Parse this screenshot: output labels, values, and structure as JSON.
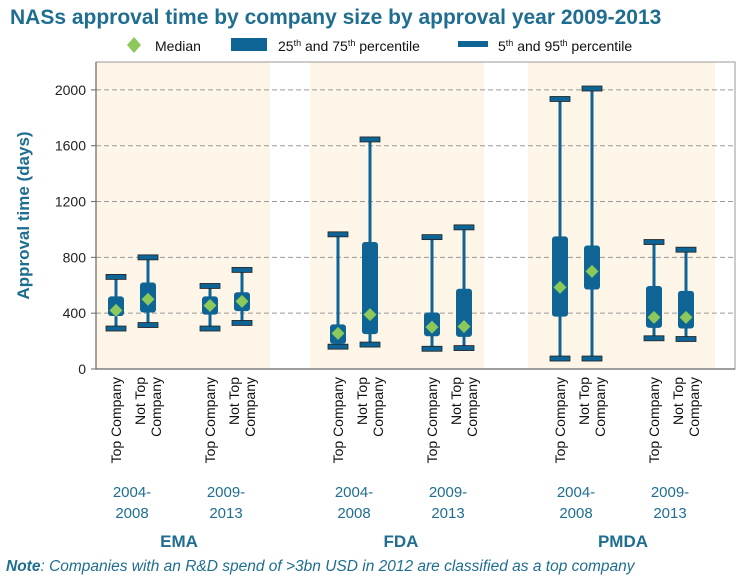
{
  "title": "NASs approval time by company size by approval year 2009-2013",
  "note": {
    "label": "Note",
    "text": ": Companies with an R&D spend of >3bn USD in 2012 are classified as a top company"
  },
  "colors": {
    "box": "#0e6494",
    "median": "#8dc85d",
    "band": "#fdf6e8",
    "axis_text": "#1f6e91",
    "grid": "#9a9a9a"
  },
  "chart_data": {
    "type": "boxplot",
    "title": "NASs approval time by company size by approval year 2009-2013",
    "ylabel": "Approval time (days)",
    "ylim": [
      0,
      2200
    ],
    "yticks": [
      0,
      400,
      800,
      1200,
      1600,
      2000
    ],
    "grid": true,
    "legend": {
      "position": "top",
      "entries": [
        {
          "symbol": "diamond",
          "label": "Median"
        },
        {
          "symbol": "box",
          "label_main": "25",
          "sup1": "th",
          "label_mid": " and 75",
          "sup2": "th",
          "label_end": " percentile"
        },
        {
          "symbol": "whisker",
          "label_main": "5",
          "sup1": "th",
          "label_mid": " and 95",
          "sup2": "th",
          "label_end": " percentile"
        }
      ]
    },
    "agencies": [
      {
        "name": "EMA",
        "periods": [
          {
            "label": [
              "2004-",
              "2008"
            ],
            "boxes": [
              {
                "category": [
                  "Top Company"
                ],
                "p5": 290,
                "q1": 380,
                "median": 420,
                "q3": 520,
                "p95": 660
              },
              {
                "category": [
                  "Not Top",
                  "Company"
                ],
                "p5": 315,
                "q1": 405,
                "median": 500,
                "q3": 620,
                "p95": 800
              }
            ]
          },
          {
            "label": [
              "2009-",
              "2013"
            ],
            "boxes": [
              {
                "category": [
                  "Top Company"
                ],
                "p5": 290,
                "q1": 390,
                "median": 455,
                "q3": 520,
                "p95": 595
              },
              {
                "category": [
                  "Not Top",
                  "Company"
                ],
                "p5": 330,
                "q1": 415,
                "median": 485,
                "q3": 550,
                "p95": 710
              }
            ]
          }
        ]
      },
      {
        "name": "FDA",
        "periods": [
          {
            "label": [
              "2004-",
              "2008"
            ],
            "boxes": [
              {
                "category": [
                  "Top Company"
                ],
                "p5": 160,
                "q1": 180,
                "median": 255,
                "q3": 320,
                "p95": 965
              },
              {
                "category": [
                  "Not Top",
                  "Company"
                ],
                "p5": 175,
                "q1": 250,
                "median": 390,
                "q3": 910,
                "p95": 1645
              }
            ]
          },
          {
            "label": [
              "2009-",
              "2013"
            ],
            "boxes": [
              {
                "category": [
                  "Top Company"
                ],
                "p5": 145,
                "q1": 235,
                "median": 300,
                "q3": 405,
                "p95": 945
              },
              {
                "category": [
                  "Not Top",
                  "Company"
                ],
                "p5": 150,
                "q1": 230,
                "median": 305,
                "q3": 575,
                "p95": 1015
              }
            ]
          }
        ]
      },
      {
        "name": "PMDA",
        "periods": [
          {
            "label": [
              "2004-",
              "2008"
            ],
            "boxes": [
              {
                "category": [
                  "Top Company"
                ],
                "p5": 75,
                "q1": 375,
                "median": 585,
                "q3": 950,
                "p95": 1935
              },
              {
                "category": [
                  "Not Top",
                  "Company"
                ],
                "p5": 75,
                "q1": 570,
                "median": 700,
                "q3": 885,
                "p95": 2010
              }
            ]
          },
          {
            "label": [
              "2009-",
              "2013"
            ],
            "boxes": [
              {
                "category": [
                  "Top Company"
                ],
                "p5": 220,
                "q1": 295,
                "median": 370,
                "q3": 595,
                "p95": 910
              },
              {
                "category": [
                  "Not Top",
                  "Company"
                ],
                "p5": 215,
                "q1": 290,
                "median": 370,
                "q3": 560,
                "p95": 855
              }
            ]
          }
        ]
      }
    ]
  }
}
